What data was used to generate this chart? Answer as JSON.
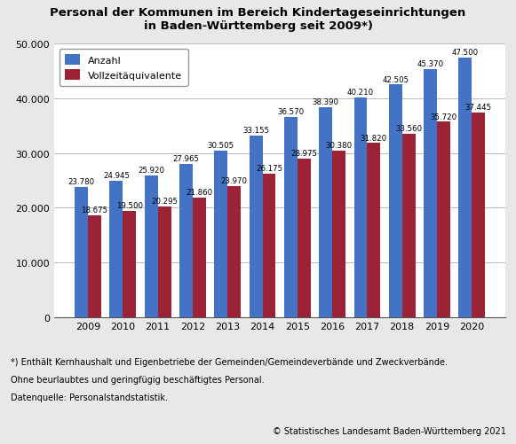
{
  "title_line1": "Personal der Kommunen im Bereich Kindertageseinrichtungen",
  "title_line2": "in Baden-Württemberg seit 2009*)",
  "years": [
    2009,
    2010,
    2011,
    2012,
    2013,
    2014,
    2015,
    2016,
    2017,
    2018,
    2019,
    2020
  ],
  "anzahl": [
    23780,
    24945,
    25920,
    27965,
    30505,
    33155,
    36570,
    38390,
    40210,
    42505,
    45370,
    47500
  ],
  "vollzeit": [
    18675,
    19500,
    20295,
    21860,
    23970,
    26175,
    28975,
    30380,
    31820,
    33560,
    35720,
    37445
  ],
  "bar_color_anzahl": "#4472C4",
  "bar_color_vollzeit": "#9B2335",
  "legend_anzahl": "Anzahl",
  "legend_vollzeit": "Vollzeitäquivalente",
  "ylim": [
    0,
    50000
  ],
  "yticks": [
    0,
    10000,
    20000,
    30000,
    40000,
    50000
  ],
  "footer_line1": "*) Enthält Kernhaushalt und Eigenbetriebe der Gemeinden/Gemeindeverbände und Zweckverbände.",
  "footer_line2": "Ohne beurlaubtes und geringfügig beschäftigtes Personal.",
  "footer_line3": "Datenquelle: Personalstandstatistik.",
  "copyright": "© Statistisches Landesamt Baden-Württemberg 2021",
  "background_color": "#E8E8E8",
  "plot_background": "#FFFFFF",
  "bar_width": 0.38,
  "label_fontsize": 6.2,
  "title_fontsize": 9.5,
  "axis_fontsize": 8.0,
  "footer_fontsize": 7.0,
  "copyright_fontsize": 7.0
}
